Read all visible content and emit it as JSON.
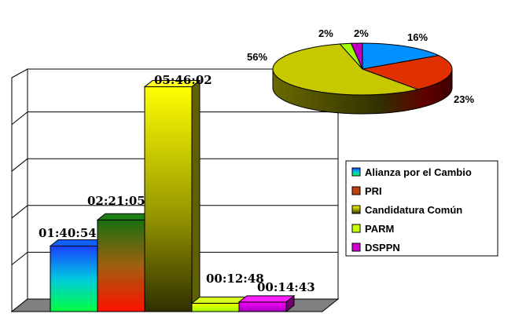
{
  "chart_data": [
    {
      "type": "bar",
      "categories": [
        "Alianza por el Cambio",
        "PRI",
        "Candidatura Común",
        "PARM",
        "DSPPN"
      ],
      "values": [
        6054,
        8465,
        20762,
        768,
        883
      ],
      "labels": [
        "01:40:54",
        "02:21:05",
        "05:46:02",
        "00:12:48",
        "00:14:43"
      ],
      "colors": [
        "#00A0FF",
        "#C04010",
        "#E0E000",
        "#C8FF00",
        "#D000D0"
      ],
      "ylim": [
        0,
        21600
      ],
      "grid": true
    },
    {
      "type": "pie",
      "categories": [
        "Alianza por el Cambio",
        "PRI",
        "Candidatura Común",
        "PARM",
        "DSPPN"
      ],
      "values": [
        16,
        23,
        56,
        2,
        2
      ],
      "labels": [
        "16%",
        "23%",
        "56%",
        "2%",
        "2%"
      ],
      "colors": [
        "#00A0FF",
        "#C04010",
        "#E0E000",
        "#C8FF00",
        "#D000D0"
      ]
    }
  ],
  "legend": {
    "items": [
      "Alianza por el Cambio",
      "PRI",
      "Candidatura Común",
      "PARM",
      "DSPPN"
    ],
    "placement": "right"
  }
}
